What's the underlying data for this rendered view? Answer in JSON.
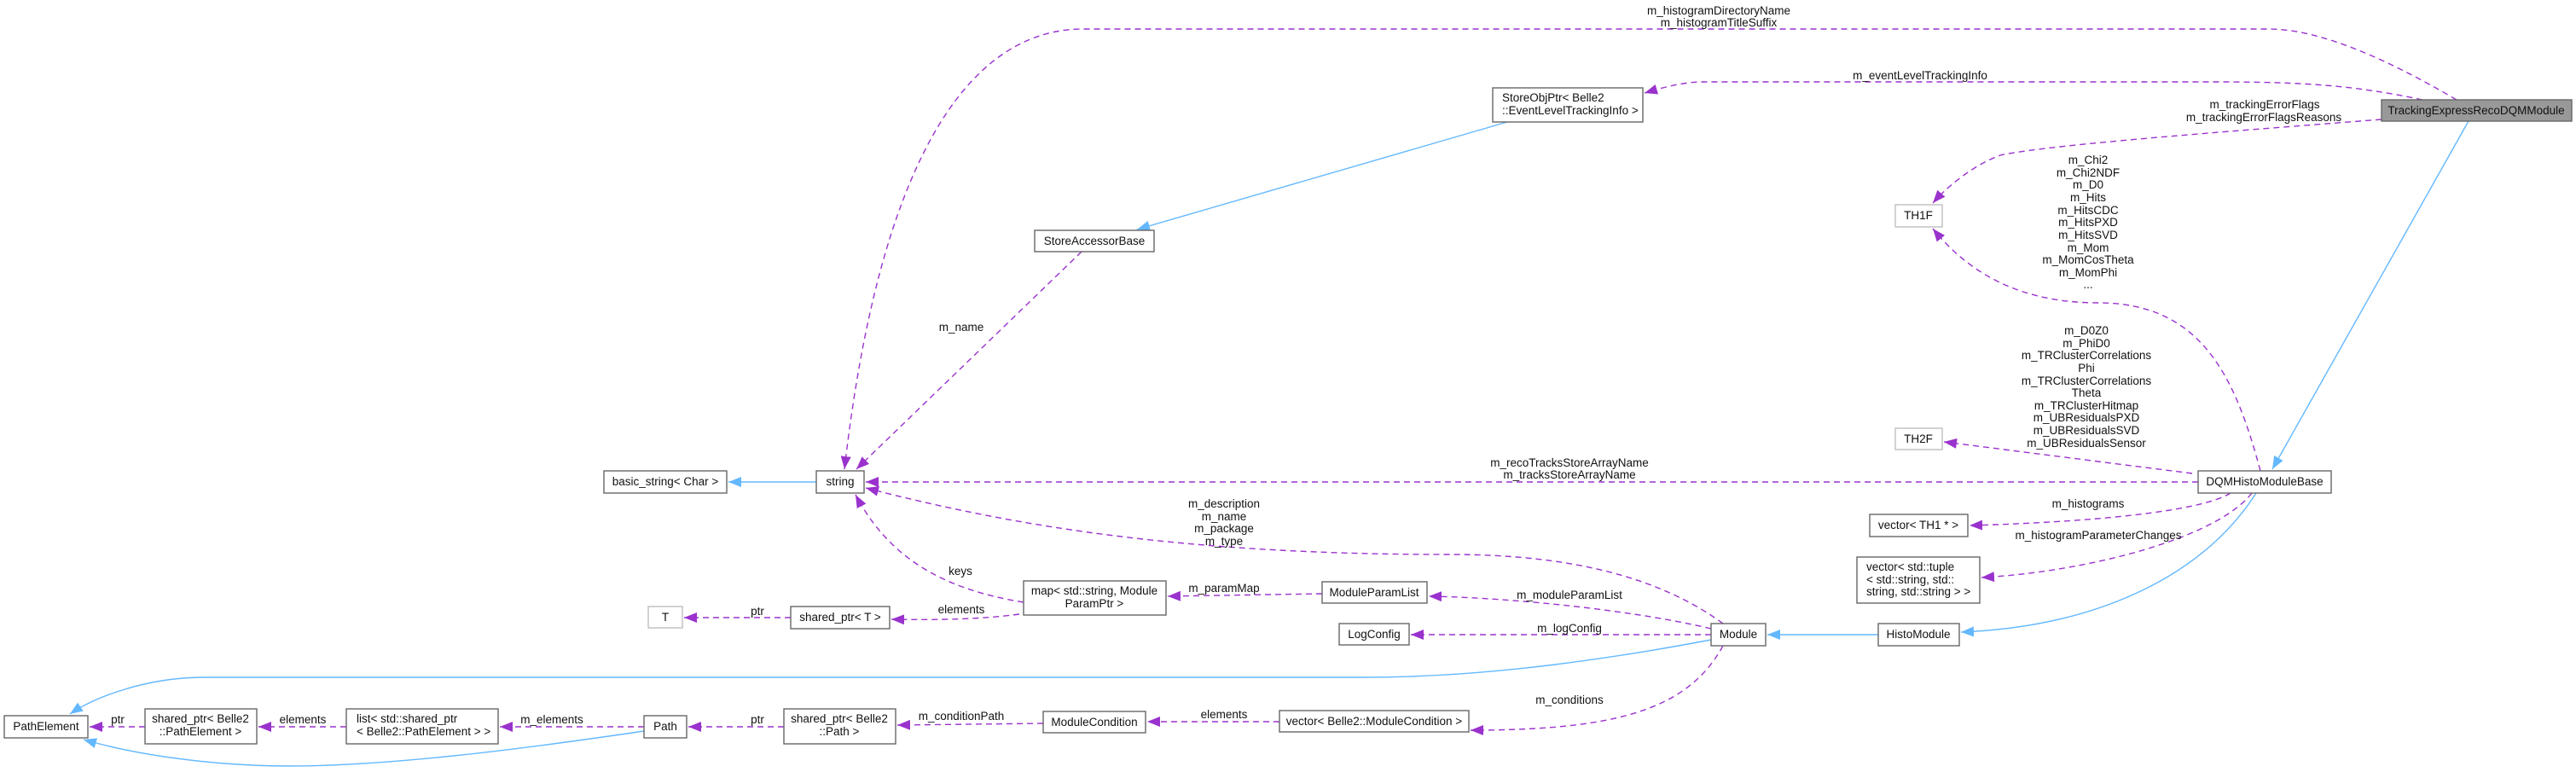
{
  "colors": {
    "member_edge": "#9a32cd",
    "inheritance_edge": "#63b8ff",
    "focus_node_fill": "#999999",
    "node_border": "#666666",
    "external_node_border": "#bfbfbf"
  },
  "nodes": {
    "tracking_express": [
      "TrackingExpressRecoDQMModule"
    ],
    "store_obj_ptr": [
      "StoreObjPtr< Belle2",
      "::EventLevelTrackingInfo >"
    ],
    "th1f": [
      "TH1F"
    ],
    "store_accessor_base": [
      "StoreAccessorBase"
    ],
    "string": [
      "string"
    ],
    "basic_string": [
      "basic_string< Char >"
    ],
    "th2f": [
      "TH2F"
    ],
    "dqm_histo_module_base": [
      "DQMHistoModuleBase"
    ],
    "vector_th1": [
      "vector< TH1 * >"
    ],
    "vector_tuple": [
      "vector< std::tuple",
      "< std::string, std::",
      "string, std::string > >"
    ],
    "histo_module": [
      "HistoModule"
    ],
    "module": [
      "Module"
    ],
    "module_param_list": [
      "ModuleParamList"
    ],
    "log_config": [
      "LogConfig"
    ],
    "map_param": [
      "map< std::string, Module",
      "ParamPtr >"
    ],
    "shared_ptr_t": [
      "shared_ptr< T >"
    ],
    "t": [
      "T"
    ],
    "path_element": [
      "PathElement"
    ],
    "shared_ptr_path_element": [
      "shared_ptr< Belle2",
      "::PathElement >"
    ],
    "list_shared_ptr": [
      "list< std::shared_ptr",
      "< Belle2::PathElement > >"
    ],
    "path": [
      "Path"
    ],
    "shared_ptr_path": [
      "shared_ptr< Belle2",
      "::Path >"
    ],
    "module_condition": [
      "ModuleCondition"
    ],
    "vector_module_condition": [
      "vector< Belle2::ModuleCondition >"
    ]
  },
  "edges": {
    "histdir": [
      "m_histogramDirectoryName",
      "m_histogramTitleSuffix"
    ],
    "event_info": [
      "m_eventLevelTrackingInfo"
    ],
    "error_flags": [
      "m_trackingErrorFlags",
      "m_trackingErrorFlagsReasons"
    ],
    "store_name": [
      "m_name"
    ],
    "dqm_th1f": [
      "m_Chi2",
      "m_Chi2NDF",
      "m_D0",
      "m_Hits",
      "m_HitsCDC",
      "m_HitsPXD",
      "m_HitsSVD",
      "m_Mom",
      "m_MomCosTheta",
      "m_MomPhi",
      "..."
    ],
    "dqm_th2f": [
      "m_D0Z0",
      "m_PhiD0",
      "m_TRClusterCorrelations",
      "Phi",
      "m_TRClusterCorrelations",
      "Theta",
      "m_TRClusterHitmap",
      "m_UBResidualsPXD",
      "m_UBResidualsSVD",
      "m_UBResidualsSensor"
    ],
    "dqm_string": [
      "m_recoTracksStoreArrayName",
      "m_tracksStoreArrayName"
    ],
    "dqm_histograms": [
      "m_histograms"
    ],
    "dqm_param_changes": [
      "m_histogramParameterChanges"
    ],
    "module_string": [
      "m_description",
      "m_name",
      "m_package",
      "m_type"
    ],
    "map_keys": [
      "keys"
    ],
    "map_elements": [
      "elements"
    ],
    "shared_t_ptr": [
      "ptr"
    ],
    "param_map": [
      "m_paramMap"
    ],
    "module_param_list": [
      "m_moduleParamList"
    ],
    "log_config": [
      "m_logConfig"
    ],
    "conditions": [
      "m_conditions"
    ],
    "condition_elements": [
      "elements"
    ],
    "condition_path": [
      "m_conditionPath"
    ],
    "path_ptr": [
      "ptr"
    ],
    "path_elements": [
      "m_elements"
    ],
    "list_elements": [
      "elements"
    ],
    "pe_ptr": [
      "ptr"
    ]
  }
}
